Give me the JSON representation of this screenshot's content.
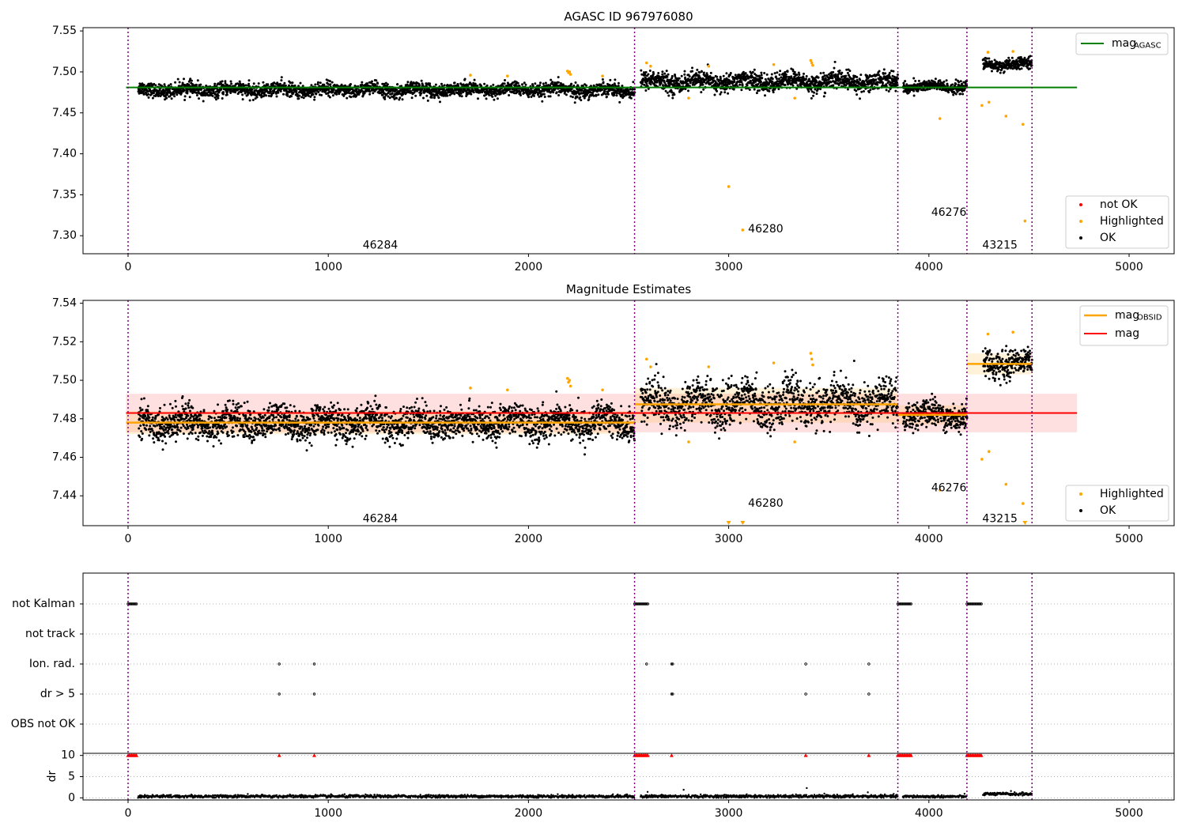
{
  "chart_data": [
    {
      "type": "scatter",
      "title": "AGASC ID 967976080",
      "xlim": [
        -225,
        5225
      ],
      "ylim": [
        7.278,
        7.554
      ],
      "xticks": [
        0,
        1000,
        2000,
        3000,
        4000,
        5000
      ],
      "yticks": [
        7.3,
        7.35,
        7.4,
        7.45,
        7.5,
        7.55
      ],
      "ytick_labels": [
        "7.30",
        "7.35",
        "7.40",
        "7.45",
        "7.50",
        "7.55"
      ],
      "obsid_boundaries": [
        0,
        2530,
        3845,
        4190,
        4515
      ],
      "obsid_labels": [
        {
          "text": "46284",
          "x": 1260,
          "y": 7.288
        },
        {
          "text": "46280",
          "x": 3185,
          "y": 7.308
        },
        {
          "text": "46276",
          "x": 4100,
          "y": 7.328
        },
        {
          "text": "43215",
          "x": 4355,
          "y": 7.288
        }
      ],
      "reference_line": {
        "name": "mag_AGASC",
        "y": 7.481,
        "x": [
          -10,
          4740
        ],
        "color": "#008000"
      },
      "ok_segments": [
        {
          "x": [
            50,
            2530
          ],
          "mean": 7.478,
          "spread": 0.006
        },
        {
          "x": [
            2560,
            3845
          ],
          "mean": 7.488,
          "spread": 0.008
        },
        {
          "x": [
            3870,
            4190
          ],
          "mean": 7.482,
          "spread": 0.005
        },
        {
          "x": [
            4270,
            4515
          ],
          "mean": 7.509,
          "spread": 0.005
        }
      ],
      "highlighted_points": {
        "x": [
          1710,
          1895,
          2195,
          2200,
          2205,
          2210,
          2370,
          2590,
          2610,
          2800,
          2900,
          3000,
          3070,
          3225,
          3330,
          3410,
          3415,
          3420,
          4055,
          4265,
          4295,
          4300,
          4385,
          4420,
          4470,
          4480
        ],
        "y": [
          7.496,
          7.495,
          7.501,
          7.499,
          7.5,
          7.497,
          7.495,
          7.511,
          7.507,
          7.468,
          7.507,
          7.36,
          7.307,
          7.509,
          7.468,
          7.514,
          7.511,
          7.508,
          7.443,
          7.459,
          7.524,
          7.463,
          7.446,
          7.525,
          7.436,
          7.318
        ]
      },
      "legends": [
        {
          "position": "upper-right",
          "entries": [
            {
              "label": "mag",
              "sub": "AGASC",
              "kind": "line",
              "color": "#008000"
            }
          ]
        },
        {
          "position": "lower-right",
          "entries": [
            {
              "label": "not OK",
              "kind": "dot",
              "color": "#ff0000"
            },
            {
              "label": "Highlighted",
              "kind": "dot",
              "color": "#ffa500"
            },
            {
              "label": "OK",
              "kind": "dot",
              "color": "#000000"
            }
          ]
        }
      ]
    },
    {
      "type": "scatter",
      "title": "Magnitude Estimates",
      "xlim": [
        -225,
        5225
      ],
      "ylim": [
        7.4245,
        7.5415
      ],
      "xticks": [
        0,
        1000,
        2000,
        3000,
        4000,
        5000
      ],
      "yticks": [
        7.44,
        7.46,
        7.48,
        7.5,
        7.52,
        7.54
      ],
      "ytick_labels": [
        "7.44",
        "7.46",
        "7.48",
        "7.50",
        "7.52",
        "7.54"
      ],
      "obsid_boundaries": [
        0,
        2530,
        3845,
        4190,
        4515
      ],
      "obsid_labels": [
        {
          "text": "46284",
          "x": 1260,
          "y": 7.428
        },
        {
          "text": "46280",
          "x": 3185,
          "y": 7.436
        },
        {
          "text": "46276",
          "x": 4100,
          "y": 7.444
        },
        {
          "text": "43215",
          "x": 4355,
          "y": 7.428
        }
      ],
      "mag_line": {
        "name": "mag",
        "y": 7.483,
        "band": [
          7.473,
          7.493
        ],
        "x": [
          -10,
          4740
        ],
        "color": "#ff0000"
      },
      "obsid_means": [
        {
          "x": [
            -10,
            2530
          ],
          "y": 7.478,
          "band": [
            7.472,
            7.484
          ]
        },
        {
          "x": [
            2530,
            3845
          ],
          "y": 7.4875,
          "band": [
            7.478,
            7.496
          ]
        },
        {
          "x": [
            3845,
            4190
          ],
          "y": 7.482,
          "band": [
            7.477,
            7.487
          ]
        },
        {
          "x": [
            4190,
            4515
          ],
          "y": 7.5085,
          "band": [
            7.503,
            7.514
          ]
        }
      ],
      "ok_segments": [
        {
          "x": [
            50,
            2530
          ],
          "mean": 7.478,
          "spread": 0.006
        },
        {
          "x": [
            2560,
            3845
          ],
          "mean": 7.488,
          "spread": 0.008
        },
        {
          "x": [
            3870,
            4190
          ],
          "mean": 7.482,
          "spread": 0.005
        },
        {
          "x": [
            4270,
            4515
          ],
          "mean": 7.509,
          "spread": 0.005
        }
      ],
      "highlighted_points": {
        "x": [
          1710,
          1895,
          2195,
          2200,
          2205,
          2210,
          2370,
          2590,
          2610,
          2800,
          2900,
          3225,
          3330,
          3410,
          3415,
          3420,
          4055,
          4265,
          4295,
          4300,
          4385,
          4420,
          4470
        ],
        "y": [
          7.496,
          7.495,
          7.501,
          7.499,
          7.5,
          7.497,
          7.495,
          7.511,
          7.507,
          7.468,
          7.507,
          7.509,
          7.468,
          7.514,
          7.511,
          7.508,
          7.443,
          7.459,
          7.524,
          7.463,
          7.446,
          7.525,
          7.436
        ]
      },
      "clipped_points_x": [
        3000,
        3070,
        4480
      ],
      "legends": [
        {
          "position": "upper-right",
          "entries": [
            {
              "label": "mag",
              "sub": "OBSID",
              "kind": "line",
              "color": "#ffa500"
            },
            {
              "label": "mag",
              "kind": "line",
              "color": "#ff0000"
            }
          ]
        },
        {
          "position": "lower-right",
          "entries": [
            {
              "label": "Highlighted",
              "kind": "dot",
              "color": "#ffa500"
            },
            {
              "label": "OK",
              "kind": "dot",
              "color": "#000000"
            }
          ]
        }
      ]
    },
    {
      "type": "scatter",
      "title": "",
      "xlim": [
        -225,
        5225
      ],
      "xticks": [
        0,
        1000,
        2000,
        3000,
        4000,
        5000
      ],
      "flag_rows": [
        "not Kalman",
        "not track",
        "Ion. rad.",
        "dr > 5",
        "OBS not OK"
      ],
      "obsid_boundaries": [
        0,
        2530,
        3845,
        4190,
        4515
      ],
      "not_kalman_x": [
        [
          0,
          45
        ],
        [
          2530,
          2600
        ],
        [
          3845,
          3915
        ],
        [
          4190,
          4265
        ]
      ],
      "ion_rad_x": [
        755,
        930,
        2590,
        2715,
        2720,
        3385,
        3700
      ],
      "dr_gt_5_x": [
        755,
        930,
        2715,
        2720,
        3385,
        3700
      ],
      "dr_axis": {
        "ylabel": "dr",
        "ylim": [
          -0.5,
          10.5
        ],
        "yticks": [
          0,
          5,
          10
        ],
        "ytick_labels": [
          "0",
          "5",
          "10"
        ],
        "clipped_x": [
          [
            0,
            45
          ],
          [
            2530,
            2600
          ],
          [
            3845,
            3915
          ],
          [
            4190,
            4265
          ]
        ],
        "clipped_single_x": [
          755,
          930,
          2715,
          3385,
          3700
        ],
        "dr_segments": [
          {
            "x": [
              50,
              2530
            ],
            "mean": 0.35
          },
          {
            "x": [
              2560,
              3845
            ],
            "mean": 0.35
          },
          {
            "x": [
              3870,
              4190
            ],
            "mean": 0.3
          },
          {
            "x": [
              4270,
              4515
            ],
            "mean": 0.9
          }
        ],
        "dr_outliers": {
          "x": [
            2595,
            2775,
            3390,
            3695,
            4410
          ],
          "y": [
            1.4,
            1.9,
            2.3,
            1.3,
            1.6
          ]
        }
      }
    }
  ]
}
